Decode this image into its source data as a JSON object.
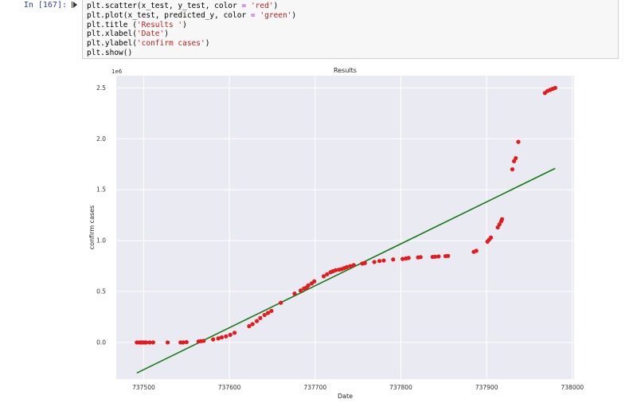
{
  "cell": {
    "prompt": "In [167]:",
    "code": [
      {
        "pre": "plt.scatter(x_test, y_test, color ",
        "op": "=",
        "mid": " ",
        "str": "'red'",
        "post": ")"
      },
      {
        "pre": "plt.plot(x_test, predicted_y, color ",
        "op": "=",
        "mid": " ",
        "str": "'green'",
        "post": ")"
      },
      {
        "pre": "plt.title (",
        "op": "",
        "mid": "",
        "str": "'Results '",
        "post": ")"
      },
      {
        "pre": "plt.xlabel(",
        "op": "",
        "mid": "",
        "str": "'Date'",
        "post": ")"
      },
      {
        "pre": "plt.ylabel(",
        "op": "",
        "mid": "",
        "str": "'confirm cases'",
        "post": ")"
      },
      {
        "pre": "plt.show()",
        "op": "",
        "mid": "",
        "str": "",
        "post": ""
      }
    ]
  },
  "chart_data": {
    "type": "scatter",
    "title": "Results",
    "xlabel": "Date",
    "ylabel": "confirm cases",
    "offset_text": "1e6",
    "xlim": [
      737468,
      738002
    ],
    "ylim": [
      -0.36,
      2.62
    ],
    "xticks": [
      737500,
      737600,
      737700,
      737800,
      737900,
      738000
    ],
    "yticks": [
      0.0,
      0.5,
      1.0,
      1.5,
      2.0,
      2.5
    ],
    "xtick_labels": [
      "737500",
      "737600",
      "737700",
      "737800",
      "737900",
      "738000"
    ],
    "ytick_labels": [
      "0.0",
      "0.5",
      "1.0",
      "1.5",
      "2.0",
      "2.5"
    ],
    "grid": true,
    "scatter_color": "#e41a1c",
    "line_color": "#1a7a1a",
    "background": "#eaeaf2",
    "series": [
      {
        "kind": "scatter",
        "points": [
          [
            737492,
            0.0
          ],
          [
            737495,
            0.0
          ],
          [
            737497,
            0.0
          ],
          [
            737499,
            0.0
          ],
          [
            737501,
            0.0
          ],
          [
            737503,
            0.0
          ],
          [
            737507,
            0.0
          ],
          [
            737511,
            0.0
          ],
          [
            737528,
            0.0
          ],
          [
            737543,
            0.0
          ],
          [
            737546,
            0.0
          ],
          [
            737550,
            0.003
          ],
          [
            737564,
            0.01
          ],
          [
            737567,
            0.013
          ],
          [
            737570,
            0.016
          ],
          [
            737581,
            0.03
          ],
          [
            737587,
            0.04
          ],
          [
            737591,
            0.05
          ],
          [
            737596,
            0.06
          ],
          [
            737601,
            0.075
          ],
          [
            737606,
            0.095
          ],
          [
            737623,
            0.16
          ],
          [
            737627,
            0.18
          ],
          [
            737632,
            0.21
          ],
          [
            737636,
            0.24
          ],
          [
            737641,
            0.27
          ],
          [
            737645,
            0.29
          ],
          [
            737649,
            0.31
          ],
          [
            737660,
            0.39
          ],
          [
            737676,
            0.48
          ],
          [
            737683,
            0.51
          ],
          [
            737687,
            0.53
          ],
          [
            737690,
            0.54
          ],
          [
            737692,
            0.56
          ],
          [
            737696,
            0.58
          ],
          [
            737699,
            0.6
          ],
          [
            737710,
            0.65
          ],
          [
            737714,
            0.67
          ],
          [
            737718,
            0.69
          ],
          [
            737721,
            0.7
          ],
          [
            737724,
            0.71
          ],
          [
            737728,
            0.715
          ],
          [
            737731,
            0.72
          ],
          [
            737734,
            0.73
          ],
          [
            737737,
            0.74
          ],
          [
            737741,
            0.75
          ],
          [
            737745,
            0.76
          ],
          [
            737755,
            0.775
          ],
          [
            737758,
            0.78
          ],
          [
            737769,
            0.79
          ],
          [
            737775,
            0.8
          ],
          [
            737780,
            0.805
          ],
          [
            737791,
            0.815
          ],
          [
            737802,
            0.82
          ],
          [
            737806,
            0.825
          ],
          [
            737809,
            0.83
          ],
          [
            737820,
            0.835
          ],
          [
            737823,
            0.838
          ],
          [
            737837,
            0.84
          ],
          [
            737840,
            0.842
          ],
          [
            737844,
            0.845
          ],
          [
            737852,
            0.848
          ],
          [
            737855,
            0.85
          ],
          [
            737885,
            0.89
          ],
          [
            737888,
            0.9
          ],
          [
            737901,
            0.99
          ],
          [
            737903,
            1.01
          ],
          [
            737905,
            1.03
          ],
          [
            737913,
            1.13
          ],
          [
            737915,
            1.16
          ],
          [
            737917,
            1.19
          ],
          [
            737918,
            1.21
          ],
          [
            737930,
            1.7
          ],
          [
            737932,
            1.78
          ],
          [
            737934,
            1.81
          ],
          [
            737937,
            1.97
          ],
          [
            737968,
            2.45
          ],
          [
            737971,
            2.47
          ],
          [
            737974,
            2.48
          ],
          [
            737977,
            2.49
          ],
          [
            737980,
            2.5
          ]
        ]
      },
      {
        "kind": "line",
        "points": [
          [
            737492,
            -0.3
          ],
          [
            737980,
            1.71
          ]
        ]
      }
    ]
  }
}
